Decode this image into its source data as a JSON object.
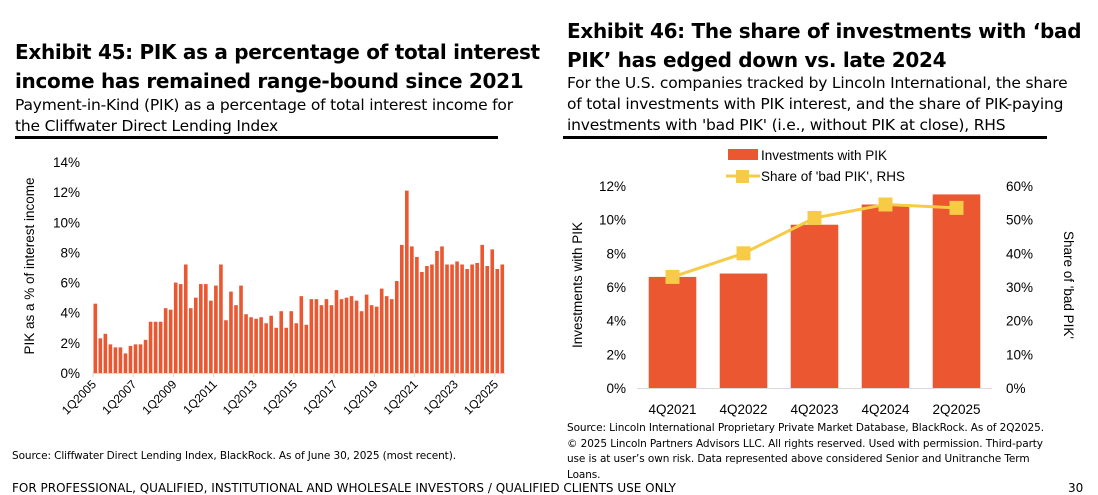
{
  "left": {
    "title_line1": "Exhibit 45: PIK as a percentage of total interest",
    "title_line2": "income has remained range-bound since 2021",
    "subtitle_line1": "Payment-in-Kind (PIK) as a percentage of total interest income for",
    "subtitle_line2": "the Cliffwater Direct Lending Index",
    "source": "Source: Cliffwater Direct Lending Index, BlackRock. As of June 30, 2025 (most recent)."
  },
  "right": {
    "title_line1": "Exhibit 46: The share of investments with ‘bad",
    "title_line2": "PIK’ has edged down vs. late 2024",
    "subtitle_line1": "For the U.S. companies tracked by Lincoln International, the share",
    "subtitle_line2": "of total investments with PIK interest, and the share of PIK-paying",
    "subtitle_line3": "investments with 'bad PIK' (i.e., without PIK at close), RHS",
    "source_line1": "Source: Lincoln International Proprietary Private Market Database, BlackRock. As of 2Q2025.",
    "source_line2": "© 2025 Lincoln Partners Advisors LLC. All rights reserved. Used with permission. Third-party",
    "source_line3": "use is at user’s own risk. Data represented above considered Senior and Unitranche Term",
    "source_line4": "Loans."
  },
  "footer": {
    "left_text": "FOR PROFESSIONAL, QUALIFIED, INSTITUTIONAL AND WHOLESALE INVESTORS / QUALIFIED CLIENTS USE ONLY",
    "page_number": "30"
  },
  "colors": {
    "bar": "#EB5731",
    "line": "#F7CB45",
    "axis": "#D9D9D9",
    "text": "#000000"
  },
  "chart_data": [
    {
      "type": "bar",
      "title": "Exhibit 45: PIK as a percentage of total interest income has remained range-bound since 2021",
      "xlabel": "",
      "ylabel": "PIK as a % of interest income",
      "ylim": [
        0,
        14
      ],
      "yticks": [
        "0%",
        "2%",
        "4%",
        "6%",
        "8%",
        "10%",
        "12%",
        "14%"
      ],
      "ytick_values": [
        0,
        2,
        4,
        6,
        8,
        10,
        12,
        14
      ],
      "xtick_labels": [
        "1Q2005",
        "1Q2007",
        "1Q2009",
        "1Q2011",
        "1Q2013",
        "1Q2015",
        "1Q2017",
        "1Q2019",
        "1Q2021",
        "1Q2023",
        "1Q2025"
      ],
      "x_start": "1Q2005",
      "x_end": "2Q2025",
      "grid": false,
      "legend": "none",
      "series": [
        {
          "name": "PIK as % of total interest income",
          "values": [
            4.6,
            2.3,
            2.6,
            1.9,
            1.7,
            1.7,
            1.3,
            1.8,
            1.9,
            1.9,
            2.2,
            3.4,
            3.4,
            3.4,
            4.3,
            4.2,
            6.0,
            5.9,
            7.2,
            4.3,
            5.0,
            5.9,
            5.9,
            4.8,
            5.8,
            7.2,
            3.5,
            5.4,
            4.5,
            5.8,
            3.9,
            3.7,
            3.6,
            3.7,
            3.3,
            3.8,
            3.0,
            4.1,
            3.0,
            4.1,
            3.3,
            5.1,
            3.2,
            4.9,
            4.9,
            4.5,
            4.9,
            4.5,
            5.5,
            4.9,
            5.0,
            5.1,
            4.8,
            4.1,
            5.2,
            4.5,
            4.4,
            5.6,
            5.1,
            4.9,
            6.1,
            8.5,
            12.1,
            8.4,
            7.7,
            6.7,
            7.1,
            7.2,
            8.1,
            8.4,
            7.2,
            7.2,
            7.4,
            7.2,
            6.9,
            7.2,
            7.3,
            8.5,
            7.1,
            8.2,
            6.9,
            7.2
          ]
        }
      ]
    },
    {
      "type": "bar",
      "title": "Exhibit 46: The share of investments with 'bad PIK' has edged down vs. late 2024",
      "categories": [
        "4Q2021",
        "4Q2022",
        "4Q2023",
        "4Q2024",
        "2Q2025"
      ],
      "ylabel": "Investments with PIK",
      "y2label": "Share of 'bad PIK'",
      "ylim": [
        0,
        12
      ],
      "y2lim": [
        0,
        60
      ],
      "yticks": [
        "0%",
        "2%",
        "4%",
        "6%",
        "8%",
        "10%",
        "12%"
      ],
      "ytick_values": [
        0,
        2,
        4,
        6,
        8,
        10,
        12
      ],
      "y2ticks": [
        "0%",
        "10%",
        "20%",
        "30%",
        "40%",
        "50%",
        "60%"
      ],
      "y2tick_values": [
        0,
        10,
        20,
        30,
        40,
        50,
        60
      ],
      "grid": false,
      "legend": "top-center",
      "series": [
        {
          "name": "Investments with PIK",
          "type": "bar",
          "axis": "left",
          "values": [
            6.6,
            6.8,
            9.7,
            10.9,
            11.5
          ]
        },
        {
          "name": "Share of 'bad PIK', RHS",
          "type": "line",
          "axis": "right",
          "marker": "square",
          "values": [
            33,
            40,
            50.5,
            54.5,
            53.5
          ]
        }
      ]
    }
  ]
}
